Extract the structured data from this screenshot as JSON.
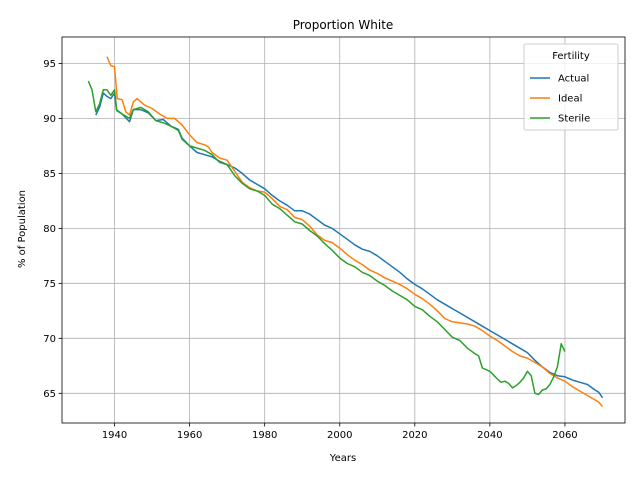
{
  "chart_data": {
    "type": "line",
    "title": "Proportion White",
    "xlabel": "Years",
    "ylabel": "% of Population",
    "xlim": [
      1926,
      2076
    ],
    "ylim": [
      62.3,
      97.4
    ],
    "xticks": [
      1940,
      1960,
      1980,
      2000,
      2020,
      2040,
      2060
    ],
    "yticks": [
      65,
      70,
      75,
      80,
      85,
      90,
      95
    ],
    "grid": true,
    "legend": {
      "title": "Fertility",
      "position": "top-right"
    },
    "series": [
      {
        "name": "Actual",
        "color": "#1f77b4",
        "points": [
          [
            1935,
            90.3
          ],
          [
            1936,
            91.0
          ],
          [
            1937,
            92.3
          ],
          [
            1938,
            92.0
          ],
          [
            1939,
            91.8
          ],
          [
            1940,
            92.3
          ],
          [
            1940.5,
            90.8
          ],
          [
            1942,
            90.4
          ],
          [
            1944,
            89.7
          ],
          [
            1945,
            90.8
          ],
          [
            1947,
            90.8
          ],
          [
            1949,
            90.5
          ],
          [
            1951,
            89.8
          ],
          [
            1953,
            89.9
          ],
          [
            1955,
            89.3
          ],
          [
            1957,
            89.0
          ],
          [
            1958,
            88.2
          ],
          [
            1960,
            87.5
          ],
          [
            1962,
            86.9
          ],
          [
            1964,
            86.7
          ],
          [
            1966,
            86.5
          ],
          [
            1968,
            86.1
          ],
          [
            1970,
            85.8
          ],
          [
            1972,
            85.5
          ],
          [
            1974,
            85.0
          ],
          [
            1976,
            84.4
          ],
          [
            1978,
            84.0
          ],
          [
            1980,
            83.6
          ],
          [
            1982,
            83.0
          ],
          [
            1984,
            82.5
          ],
          [
            1986,
            82.1
          ],
          [
            1988,
            81.6
          ],
          [
            1990,
            81.6
          ],
          [
            1992,
            81.3
          ],
          [
            1994,
            80.8
          ],
          [
            1996,
            80.3
          ],
          [
            1998,
            80.0
          ],
          [
            2000,
            79.5
          ],
          [
            2002,
            79.0
          ],
          [
            2004,
            78.5
          ],
          [
            2006,
            78.1
          ],
          [
            2008,
            77.9
          ],
          [
            2010,
            77.5
          ],
          [
            2012,
            77.0
          ],
          [
            2014,
            76.5
          ],
          [
            2016,
            76.0
          ],
          [
            2018,
            75.4
          ],
          [
            2020,
            74.9
          ],
          [
            2022,
            74.5
          ],
          [
            2024,
            74.0
          ],
          [
            2026,
            73.5
          ],
          [
            2028,
            73.1
          ],
          [
            2030,
            72.7
          ],
          [
            2032,
            72.3
          ],
          [
            2034,
            71.9
          ],
          [
            2036,
            71.5
          ],
          [
            2038,
            71.1
          ],
          [
            2040,
            70.7
          ],
          [
            2042,
            70.3
          ],
          [
            2044,
            69.9
          ],
          [
            2046,
            69.5
          ],
          [
            2048,
            69.1
          ],
          [
            2050,
            68.7
          ],
          [
            2052,
            68.0
          ],
          [
            2054,
            67.4
          ],
          [
            2056,
            66.9
          ],
          [
            2058,
            66.6
          ],
          [
            2060,
            66.5
          ],
          [
            2062,
            66.2
          ],
          [
            2064,
            66.0
          ],
          [
            2066,
            65.8
          ],
          [
            2068,
            65.3
          ],
          [
            2069,
            65.1
          ],
          [
            2070,
            64.6
          ]
        ]
      },
      {
        "name": "Ideal",
        "color": "#ff7f0e",
        "points": [
          [
            1938,
            95.6
          ],
          [
            1939,
            94.8
          ],
          [
            1940,
            94.7
          ],
          [
            1940.7,
            91.8
          ],
          [
            1942,
            91.7
          ],
          [
            1943,
            90.6
          ],
          [
            1944,
            90.3
          ],
          [
            1945,
            91.5
          ],
          [
            1946,
            91.8
          ],
          [
            1948,
            91.2
          ],
          [
            1950,
            90.9
          ],
          [
            1952,
            90.4
          ],
          [
            1954,
            90.0
          ],
          [
            1956,
            90.0
          ],
          [
            1958,
            89.4
          ],
          [
            1960,
            88.5
          ],
          [
            1962,
            87.8
          ],
          [
            1964,
            87.6
          ],
          [
            1965,
            87.4
          ],
          [
            1966,
            86.9
          ],
          [
            1968,
            86.4
          ],
          [
            1970,
            86.2
          ],
          [
            1972,
            85.2
          ],
          [
            1974,
            84.2
          ],
          [
            1976,
            83.7
          ],
          [
            1978,
            83.4
          ],
          [
            1980,
            83.3
          ],
          [
            1982,
            82.7
          ],
          [
            1984,
            82.0
          ],
          [
            1986,
            81.7
          ],
          [
            1988,
            81.0
          ],
          [
            1990,
            80.8
          ],
          [
            1992,
            80.2
          ],
          [
            1994,
            79.4
          ],
          [
            1996,
            78.9
          ],
          [
            1998,
            78.7
          ],
          [
            2000,
            78.2
          ],
          [
            2002,
            77.6
          ],
          [
            2004,
            77.1
          ],
          [
            2006,
            76.7
          ],
          [
            2008,
            76.2
          ],
          [
            2010,
            75.9
          ],
          [
            2012,
            75.5
          ],
          [
            2014,
            75.2
          ],
          [
            2016,
            74.9
          ],
          [
            2018,
            74.5
          ],
          [
            2020,
            74.0
          ],
          [
            2022,
            73.6
          ],
          [
            2024,
            73.1
          ],
          [
            2026,
            72.5
          ],
          [
            2028,
            71.8
          ],
          [
            2030,
            71.5
          ],
          [
            2032,
            71.4
          ],
          [
            2034,
            71.3
          ],
          [
            2036,
            71.1
          ],
          [
            2038,
            70.7
          ],
          [
            2040,
            70.2
          ],
          [
            2042,
            69.8
          ],
          [
            2044,
            69.3
          ],
          [
            2046,
            68.8
          ],
          [
            2048,
            68.4
          ],
          [
            2050,
            68.2
          ],
          [
            2052,
            67.8
          ],
          [
            2054,
            67.4
          ],
          [
            2056,
            66.8
          ],
          [
            2058,
            66.4
          ],
          [
            2060,
            66.1
          ],
          [
            2062,
            65.6
          ],
          [
            2064,
            65.2
          ],
          [
            2066,
            64.8
          ],
          [
            2068,
            64.4
          ],
          [
            2069,
            64.2
          ],
          [
            2070,
            63.8
          ]
        ]
      },
      {
        "name": "Sterile",
        "color": "#2ca02c",
        "points": [
          [
            1933,
            93.4
          ],
          [
            1934,
            92.6
          ],
          [
            1935,
            90.6
          ],
          [
            1936,
            91.3
          ],
          [
            1937,
            92.6
          ],
          [
            1938,
            92.6
          ],
          [
            1939,
            92.1
          ],
          [
            1940,
            92.6
          ],
          [
            1940.6,
            90.7
          ],
          [
            1942,
            90.4
          ],
          [
            1944,
            90.0
          ],
          [
            1945,
            90.8
          ],
          [
            1947,
            91.0
          ],
          [
            1949,
            90.6
          ],
          [
            1951,
            89.8
          ],
          [
            1953,
            89.6
          ],
          [
            1955,
            89.3
          ],
          [
            1957,
            88.9
          ],
          [
            1958,
            88.1
          ],
          [
            1960,
            87.5
          ],
          [
            1962,
            87.3
          ],
          [
            1964,
            87.1
          ],
          [
            1966,
            86.7
          ],
          [
            1968,
            86.0
          ],
          [
            1970,
            85.8
          ],
          [
            1972,
            84.8
          ],
          [
            1974,
            84.1
          ],
          [
            1976,
            83.6
          ],
          [
            1978,
            83.4
          ],
          [
            1980,
            83.0
          ],
          [
            1982,
            82.2
          ],
          [
            1984,
            81.8
          ],
          [
            1986,
            81.2
          ],
          [
            1988,
            80.6
          ],
          [
            1990,
            80.4
          ],
          [
            1992,
            79.8
          ],
          [
            1994,
            79.3
          ],
          [
            1996,
            78.6
          ],
          [
            1998,
            78.0
          ],
          [
            2000,
            77.3
          ],
          [
            2002,
            76.8
          ],
          [
            2004,
            76.5
          ],
          [
            2006,
            76.0
          ],
          [
            2008,
            75.7
          ],
          [
            2010,
            75.2
          ],
          [
            2012,
            74.8
          ],
          [
            2014,
            74.3
          ],
          [
            2016,
            73.9
          ],
          [
            2018,
            73.5
          ],
          [
            2020,
            72.9
          ],
          [
            2022,
            72.6
          ],
          [
            2024,
            72.0
          ],
          [
            2026,
            71.5
          ],
          [
            2028,
            70.8
          ],
          [
            2030,
            70.1
          ],
          [
            2032,
            69.8
          ],
          [
            2034,
            69.1
          ],
          [
            2036,
            68.6
          ],
          [
            2037,
            68.4
          ],
          [
            2038,
            67.3
          ],
          [
            2040,
            67.0
          ],
          [
            2042,
            66.3
          ],
          [
            2043,
            66.0
          ],
          [
            2044,
            66.1
          ],
          [
            2045,
            65.9
          ],
          [
            2046,
            65.5
          ],
          [
            2047,
            65.7
          ],
          [
            2048,
            66.0
          ],
          [
            2049,
            66.4
          ],
          [
            2050,
            67.0
          ],
          [
            2051,
            66.6
          ],
          [
            2052,
            65.0
          ],
          [
            2053,
            64.9
          ],
          [
            2054,
            65.3
          ],
          [
            2055,
            65.4
          ],
          [
            2056,
            65.8
          ],
          [
            2057,
            66.5
          ],
          [
            2058,
            67.4
          ],
          [
            2059,
            69.5
          ],
          [
            2060,
            68.8
          ]
        ]
      }
    ]
  }
}
